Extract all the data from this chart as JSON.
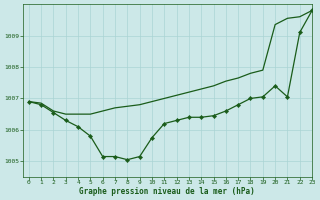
{
  "background_color": "#cce8e8",
  "grid_color": "#aad4d4",
  "line_color": "#1a5c1a",
  "xlim": [
    -0.5,
    23
  ],
  "ylim": [
    1004.5,
    1010.0
  ],
  "yticks": [
    1005,
    1006,
    1007,
    1008,
    1009
  ],
  "xticks": [
    0,
    1,
    2,
    3,
    4,
    5,
    6,
    7,
    8,
    9,
    10,
    11,
    12,
    13,
    14,
    15,
    16,
    17,
    18,
    19,
    20,
    21,
    22,
    23
  ],
  "xlabel": "Graphe pression niveau de la mer (hPa)",
  "line_upper_x": [
    0,
    1,
    2,
    3,
    4,
    5,
    6,
    7,
    8,
    9,
    10,
    11,
    12,
    13,
    14,
    15,
    16,
    17,
    18,
    19,
    20,
    21,
    22,
    23
  ],
  "line_upper_y": [
    1006.9,
    1006.85,
    1006.6,
    1006.5,
    1006.5,
    1006.5,
    1006.6,
    1006.7,
    1006.75,
    1006.8,
    1006.9,
    1007.0,
    1007.1,
    1007.2,
    1007.3,
    1007.4,
    1007.55,
    1007.65,
    1007.8,
    1007.9,
    1009.35,
    1009.55,
    1009.6,
    1009.8
  ],
  "line_lower_x": [
    0,
    1,
    2,
    3,
    4,
    5,
    6,
    7,
    8,
    9,
    10,
    11,
    12,
    13,
    14,
    15,
    16,
    17,
    18,
    19,
    20,
    21,
    22,
    23
  ],
  "line_lower_y": [
    1006.9,
    1006.8,
    1006.55,
    1006.3,
    1006.1,
    1005.8,
    1005.15,
    1005.15,
    1005.05,
    1005.15,
    1005.75,
    1006.2,
    1006.3,
    1006.4,
    1006.4,
    1006.45,
    1006.6,
    1006.8,
    1007.0,
    1007.05,
    1007.4,
    1007.05,
    1009.1,
    1009.8
  ]
}
